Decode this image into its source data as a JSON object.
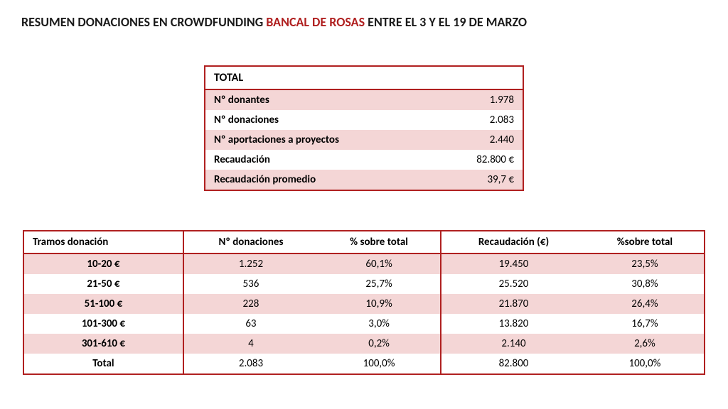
{
  "title": {
    "prefix": "RESUMEN DONACIONES EN CROWDFUNDING ",
    "highlight": "BANCAL DE ROSAS",
    "suffix": " ENTRE EL 3 Y EL 19 DE MARZO"
  },
  "colors": {
    "accent": "#b02020",
    "stripe": "#f4d6d6",
    "text": "#1a1a1a",
    "background": "#ffffff"
  },
  "summary": {
    "header": "TOTAL",
    "rows": [
      {
        "label": "Nº donantes",
        "value": "1.978"
      },
      {
        "label": "Nº donaciones",
        "value": "2.083"
      },
      {
        "label": "Nº aportaciones a proyectos",
        "value": "2.440"
      },
      {
        "label": "Recaudación",
        "value": "82.800 €"
      },
      {
        "label": "Recaudación promedio",
        "value": "39,7 €"
      }
    ]
  },
  "detail": {
    "columns": [
      "Tramos donación",
      "Nº donaciones",
      "% sobre total",
      "Recaudación (€)",
      "%sobre total"
    ],
    "rows": [
      {
        "range": "10-20 €",
        "count": "1.252",
        "pct_count": "60,1%",
        "amount": "19.450",
        "pct_amount": "23,5%"
      },
      {
        "range": "21-50 €",
        "count": "536",
        "pct_count": "25,7%",
        "amount": "25.520",
        "pct_amount": "30,8%"
      },
      {
        "range": "51-100 €",
        "count": "228",
        "pct_count": "10,9%",
        "amount": "21.870",
        "pct_amount": "26,4%"
      },
      {
        "range": "101-300 €",
        "count": "63",
        "pct_count": "3,0%",
        "amount": "13.820",
        "pct_amount": "16,7%"
      },
      {
        "range": "301-610 €",
        "count": "4",
        "pct_count": "0,2%",
        "amount": "2.140",
        "pct_amount": "2,6%"
      },
      {
        "range": "Total",
        "count": "2.083",
        "pct_count": "100,0%",
        "amount": "82.800",
        "pct_amount": "100,0%"
      }
    ]
  }
}
